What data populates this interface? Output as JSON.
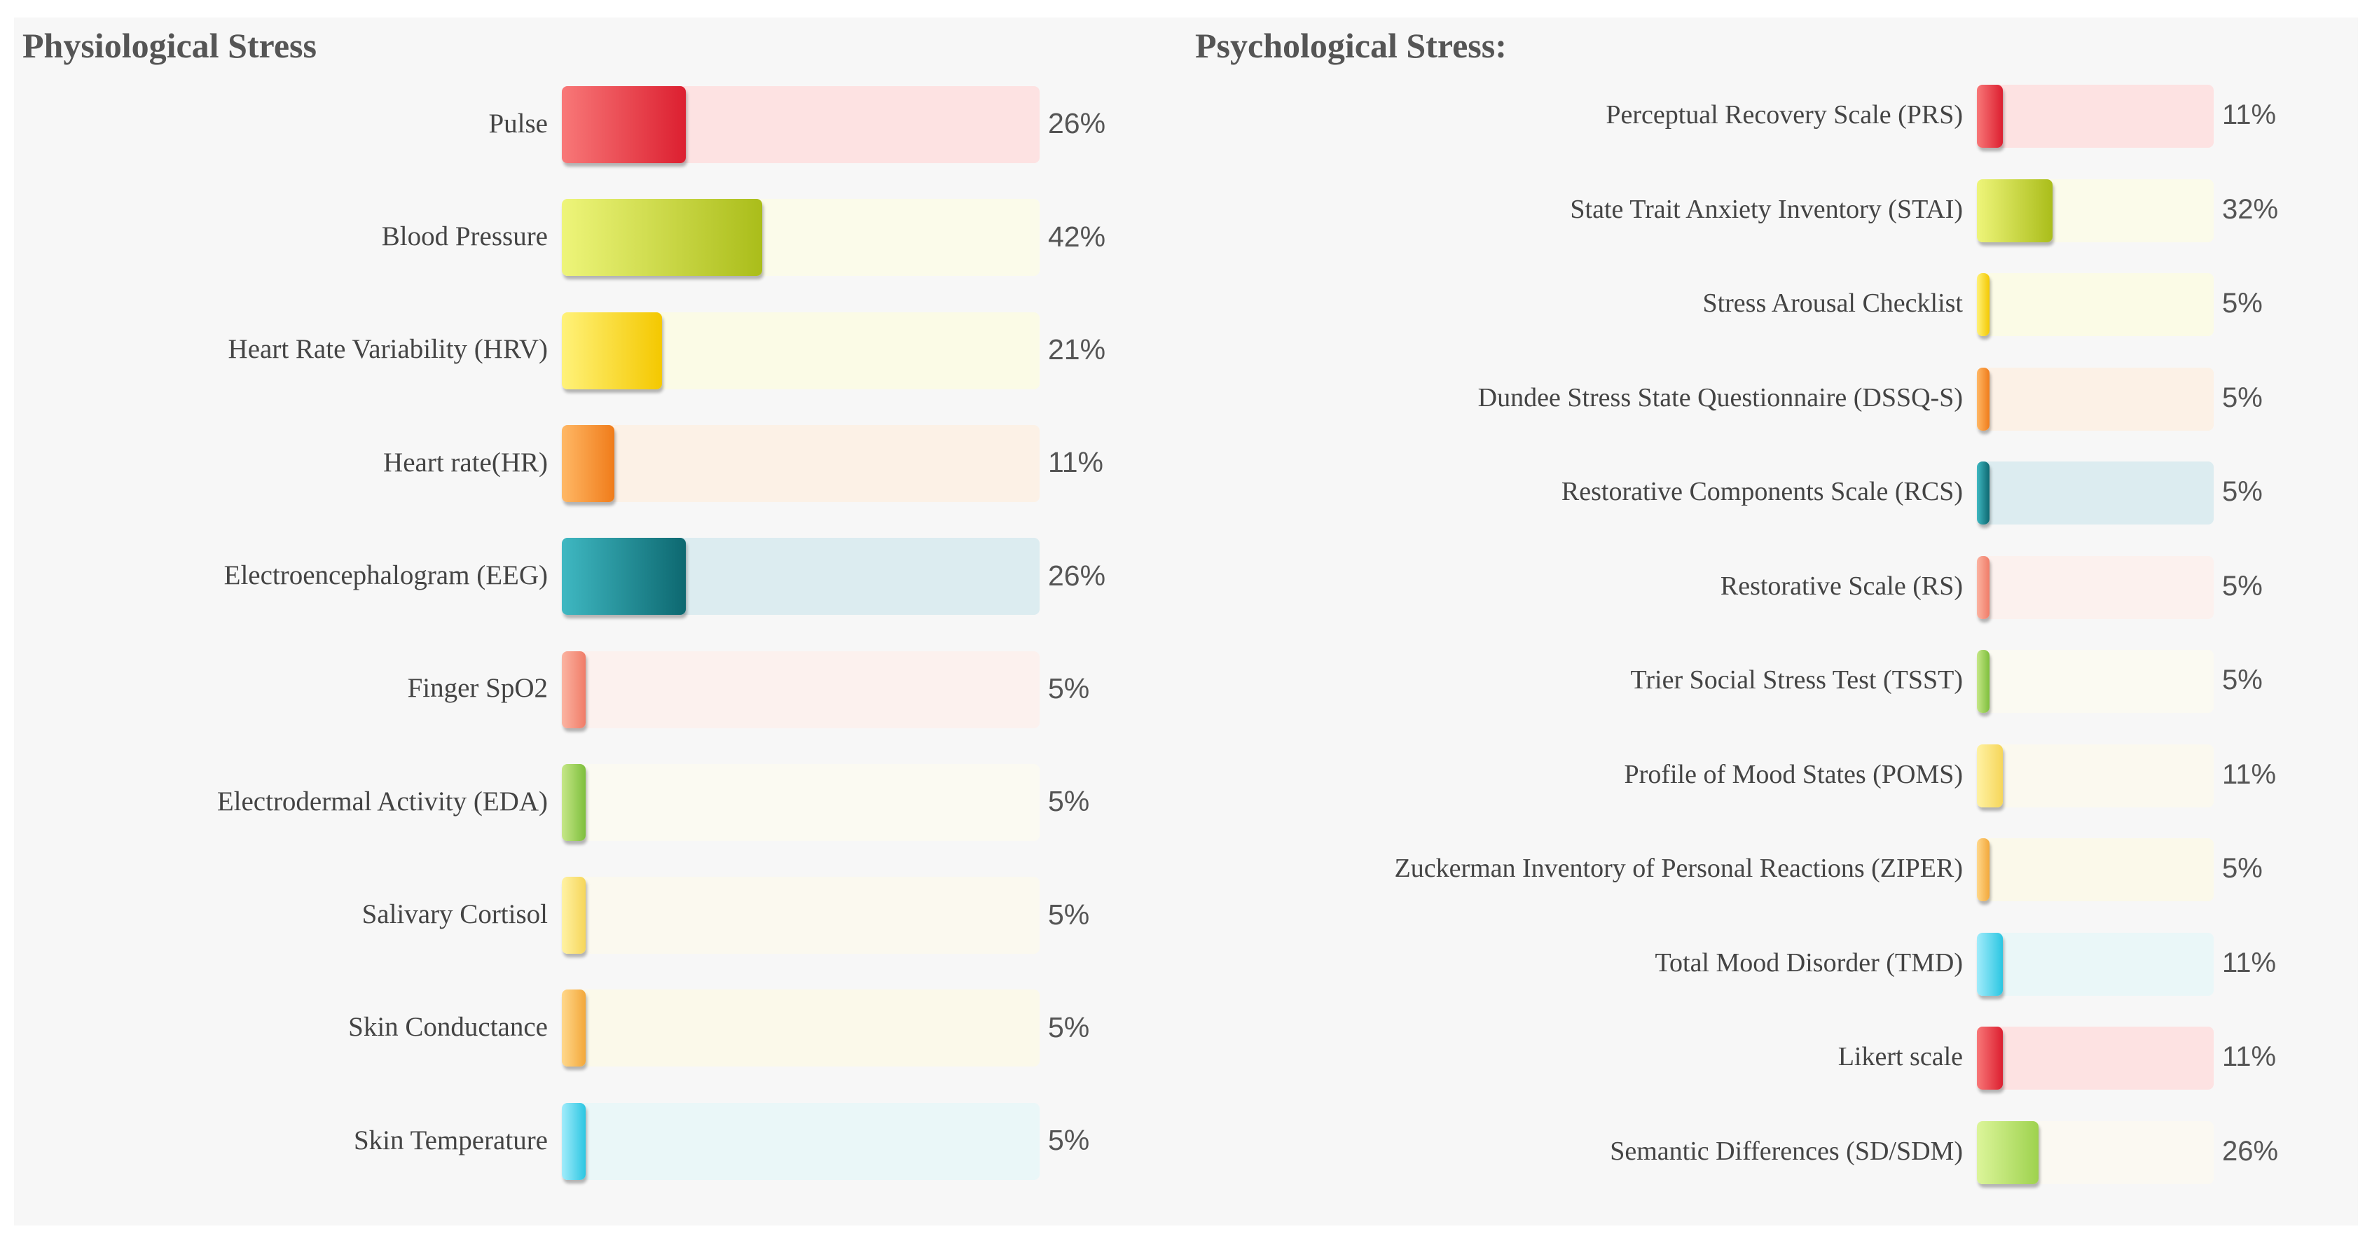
{
  "chart_data": [
    {
      "type": "bar",
      "title": "Physiological Stress",
      "xlim": [
        0,
        100
      ],
      "unit": "%",
      "categories": [
        "Pulse",
        "Blood Pressure",
        "Heart Rate Variability (HRV)",
        "Heart rate(HR)",
        "Electroencephalogram (EEG)",
        "Finger SpO2",
        "Electrodermal Activity (EDA)",
        "Salivary Cortisol",
        "Skin Conductance",
        "Skin Temperature"
      ],
      "values": [
        26,
        42,
        21,
        11,
        26,
        5,
        5,
        5,
        5,
        5
      ],
      "labels": [
        "26%",
        "42%",
        "21%",
        "11%",
        "26%",
        "5%",
        "5%",
        "5%",
        "5%",
        "5%"
      ],
      "colors": [
        [
          "#f87878",
          "#dc1f30",
          "#fde2e2"
        ],
        [
          "#eef57a",
          "#aabd1a",
          "#fbfbea"
        ],
        [
          "#fff27a",
          "#f4c800",
          "#fbfbe6"
        ],
        [
          "#ffb866",
          "#f07c1a",
          "#fcf1e6"
        ],
        [
          "#3fb8c2",
          "#0d6870",
          "#dcecf0"
        ],
        [
          "#fbb4a2",
          "#f07c68",
          "#fcf1ee"
        ],
        [
          "#c6e788",
          "#7ebf3c",
          "#fbfaf2"
        ],
        [
          "#fff2a4",
          "#f6d65a",
          "#fbf9ef"
        ],
        [
          "#ffd88c",
          "#f3a83a",
          "#fbf9ea"
        ],
        [
          "#a2ecfb",
          "#2bc6e2",
          "#eaf7f8"
        ]
      ]
    },
    {
      "type": "bar",
      "title": "Psychological Stress:",
      "xlim": [
        0,
        100
      ],
      "unit": "%",
      "categories": [
        "Perceptual Recovery Scale (PRS)",
        "State Trait Anxiety Inventory (STAI)",
        "Stress Arousal Checklist",
        "Dundee Stress State Questionnaire (DSSQ-S)",
        "Restorative Components Scale (RCS)",
        "Restorative Scale (RS)",
        "Trier Social Stress Test (TSST)",
        "Profile of Mood States (POMS)",
        "Zuckerman Inventory of Personal Reactions (ZIPER)",
        "Total Mood Disorder (TMD)",
        "Likert scale",
        "Semantic Differences (SD/SDM)"
      ],
      "values": [
        11,
        32,
        5,
        5,
        5,
        5,
        5,
        11,
        5,
        11,
        11,
        26
      ],
      "labels": [
        "11%",
        "32%",
        "5%",
        "5%",
        "5%",
        "5%",
        "5%",
        "11%",
        "5%",
        "11%",
        "11%",
        "26%"
      ],
      "colors": [
        [
          "#f87878",
          "#dc1f30",
          "#fde2e2"
        ],
        [
          "#eef57a",
          "#aabd1a",
          "#fbfbea"
        ],
        [
          "#fff27a",
          "#f4c800",
          "#fbfbe6"
        ],
        [
          "#ffb866",
          "#f07c1a",
          "#fcf1e6"
        ],
        [
          "#3fb8c2",
          "#0d6870",
          "#dcecf0"
        ],
        [
          "#fbb4a2",
          "#f07c68",
          "#fcf1ee"
        ],
        [
          "#c6e788",
          "#7ebf3c",
          "#fbfaf2"
        ],
        [
          "#fff2a4",
          "#f6d65a",
          "#fbf9ef"
        ],
        [
          "#ffd88c",
          "#f3a83a",
          "#fbf9ea"
        ],
        [
          "#a2ecfb",
          "#2bc6e2",
          "#eaf7f8"
        ],
        [
          "#f87878",
          "#dc1f30",
          "#fde2e2"
        ],
        [
          "#dcf59a",
          "#9ed24e",
          "#fbf9f2"
        ]
      ]
    }
  ]
}
